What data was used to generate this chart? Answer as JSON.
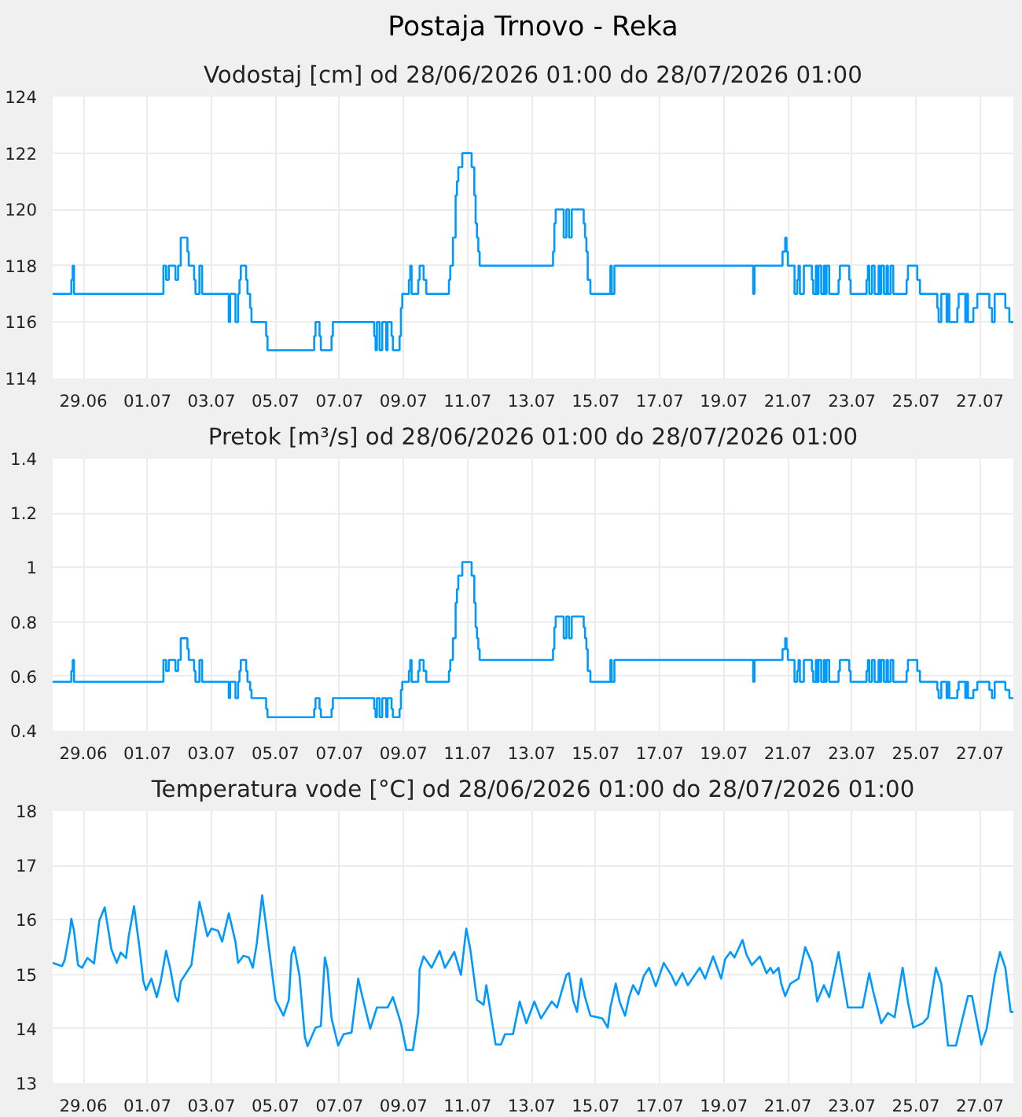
{
  "chart_data": [
    {
      "type": "step",
      "title": "Postaja Trnovo - Reka",
      "subtitle": "Vodostaj [cm] od 28/06/2026 01:00 do 28/07/2026 01:00",
      "x": [
        "2026-06-28T01:00",
        "2026-06-28T15:00",
        "2026-06-28T16:00",
        "2026-06-28T17:00",
        "2026-07-01T12:00",
        "2026-07-01T14:00",
        "2026-07-01T16:00",
        "2026-07-01T21:00",
        "2026-07-01T23:00",
        "2026-07-02T01:00",
        "2026-07-02T06:00",
        "2026-07-02T07:00",
        "2026-07-02T11:00",
        "2026-07-02T12:00",
        "2026-07-02T15:00",
        "2026-07-02T17:00",
        "2026-07-03T13:00",
        "2026-07-03T14:00",
        "2026-07-03T18:00",
        "2026-07-03T20:00",
        "2026-07-03T21:00",
        "2026-07-03T22:00",
        "2026-07-04T02:00",
        "2026-07-04T03:00",
        "2026-07-04T05:00",
        "2026-07-04T06:00",
        "2026-07-04T17:00",
        "2026-07-04T18:00",
        "2026-07-06T05:00",
        "2026-07-06T06:00",
        "2026-07-06T09:00",
        "2026-07-06T10:00",
        "2026-07-06T18:00",
        "2026-07-06T19:00",
        "2026-07-08T02:00",
        "2026-07-08T03:00",
        "2026-07-08T04:00",
        "2026-07-08T06:00",
        "2026-07-08T08:00",
        "2026-07-08T11:00",
        "2026-07-08T12:00",
        "2026-07-08T15:00",
        "2026-07-08T16:00",
        "2026-07-08T21:00",
        "2026-07-08T22:00",
        "2026-07-08T23:00",
        "2026-07-09T04:00",
        "2026-07-09T05:00",
        "2026-07-09T06:00",
        "2026-07-09T11:00",
        "2026-07-09T12:00",
        "2026-07-09T15:00",
        "2026-07-09T17:00",
        "2026-07-10T10:00",
        "2026-07-10T11:00",
        "2026-07-10T13:00",
        "2026-07-10T15:00",
        "2026-07-10T16:00",
        "2026-07-10T17:00",
        "2026-07-10T20:00",
        "2026-07-11T03:00",
        "2026-07-11T05:00",
        "2026-07-11T06:00",
        "2026-07-11T07:00",
        "2026-07-11T08:00",
        "2026-07-11T09:00",
        "2026-07-13T16:00",
        "2026-07-13T17:00",
        "2026-07-13T18:00",
        "2026-07-14T00:00",
        "2026-07-14T02:00",
        "2026-07-14T04:00",
        "2026-07-14T06:00",
        "2026-07-14T15:00",
        "2026-07-14T16:00",
        "2026-07-14T17:00",
        "2026-07-14T18:00",
        "2026-07-14T20:00",
        "2026-07-15T11:00",
        "2026-07-15T12:00",
        "2026-07-15T14:00",
        "2026-07-19T22:00",
        "2026-07-19T23:00",
        "2026-07-20T20:00",
        "2026-07-20T22:00",
        "2026-07-20T23:00",
        "2026-07-21T00:00",
        "2026-07-21T05:00",
        "2026-07-21T07:00",
        "2026-07-21T08:00",
        "2026-07-21T09:00",
        "2026-07-21T12:00",
        "2026-07-21T18:00",
        "2026-07-21T19:00",
        "2026-07-21T21:00",
        "2026-07-21T22:00",
        "2026-07-21T23:00",
        "2026-07-22T01:00",
        "2026-07-22T03:00",
        "2026-07-22T04:00",
        "2026-07-22T05:00",
        "2026-07-22T07:00",
        "2026-07-22T14:00",
        "2026-07-22T15:00",
        "2026-07-22T22:00",
        "2026-07-22T23:00",
        "2026-07-23T11:00",
        "2026-07-23T12:00",
        "2026-07-23T13:00",
        "2026-07-23T15:00",
        "2026-07-23T17:00",
        "2026-07-23T20:00",
        "2026-07-23T21:00",
        "2026-07-23T22:00",
        "2026-07-24T00:00",
        "2026-07-24T02:00",
        "2026-07-24T03:00",
        "2026-07-24T05:00",
        "2026-07-24T07:00",
        "2026-07-24T17:00",
        "2026-07-24T18:00",
        "2026-07-25T01:00",
        "2026-07-25T03:00",
        "2026-07-25T16:00",
        "2026-07-25T17:00",
        "2026-07-25T19:00",
        "2026-07-25T23:00",
        "2026-07-26T00:00",
        "2026-07-26T01:00",
        "2026-07-26T07:00",
        "2026-07-26T08:00",
        "2026-07-26T13:00",
        "2026-07-26T14:00",
        "2026-07-26T15:00",
        "2026-07-26T19:00",
        "2026-07-26T22:00",
        "2026-07-27T07:00",
        "2026-07-27T09:00",
        "2026-07-27T11:00",
        "2026-07-27T19:00",
        "2026-07-27T22:00",
        "2026-07-28T01:00"
      ],
      "series": [
        {
          "color": "#0099ff",
          "values": [
            117,
            117.5,
            118,
            117,
            118,
            117.5,
            118,
            117.5,
            118,
            119,
            118.5,
            118,
            117.5,
            117,
            118,
            117,
            116,
            117,
            116,
            117,
            117.5,
            118,
            117.5,
            117,
            116.5,
            116,
            115.5,
            115,
            115.5,
            116,
            115.5,
            115,
            115.5,
            116,
            115.5,
            115,
            116,
            115,
            116,
            115,
            116,
            115.5,
            115,
            115.5,
            116.5,
            117,
            117.5,
            118,
            117,
            117.5,
            118,
            117.5,
            117,
            117.5,
            118,
            119,
            120.5,
            121,
            121.5,
            122,
            121.5,
            120.5,
            119.5,
            119,
            118.5,
            118,
            118.5,
            119.5,
            120,
            119,
            120,
            119,
            120,
            119.5,
            119,
            118.5,
            117.5,
            117,
            118,
            117,
            118,
            117,
            118,
            118.5,
            119,
            118.5,
            118,
            117,
            117.5,
            118,
            117,
            118,
            117.5,
            117,
            118,
            117,
            118,
            117,
            118,
            117,
            118,
            117,
            117.5,
            118,
            117.5,
            117,
            117.5,
            118,
            117,
            118,
            117,
            118,
            117,
            118,
            117,
            118,
            117,
            118,
            117,
            117.5,
            118,
            117.5,
            117,
            116.5,
            116,
            117,
            116,
            117,
            116,
            116.5,
            117,
            116,
            117,
            116,
            116.5,
            117,
            116.5,
            116,
            117,
            116.5,
            116,
            116
          ]
        }
      ],
      "xlim": [
        "2026-06-28T01:00",
        "2026-07-28T01:00"
      ],
      "xticks": [
        {
          "value": "2026-06-29",
          "label": "29.06"
        },
        {
          "value": "2026-07-01",
          "label": "01.07"
        },
        {
          "value": "2026-07-03",
          "label": "03.07"
        },
        {
          "value": "2026-07-05",
          "label": "05.07"
        },
        {
          "value": "2026-07-07",
          "label": "07.07"
        },
        {
          "value": "2026-07-09",
          "label": "09.07"
        },
        {
          "value": "2026-07-11",
          "label": "11.07"
        },
        {
          "value": "2026-07-13",
          "label": "13.07"
        },
        {
          "value": "2026-07-15",
          "label": "15.07"
        },
        {
          "value": "2026-07-17",
          "label": "17.07"
        },
        {
          "value": "2026-07-19",
          "label": "19.07"
        },
        {
          "value": "2026-07-21",
          "label": "21.07"
        },
        {
          "value": "2026-07-23",
          "label": "23.07"
        },
        {
          "value": "2026-07-25",
          "label": "25.07"
        },
        {
          "value": "2026-07-27",
          "label": "27.07"
        }
      ],
      "ylim": [
        114,
        124
      ],
      "yticks": [
        114,
        116,
        118,
        120,
        122,
        124
      ],
      "grid": true
    },
    {
      "type": "step",
      "title": "Pretok [m³/s] od 28/06/2026 01:00 do 28/07/2026 01:00",
      "x": [
        "2026-06-28T01:00",
        "2026-06-28T15:00",
        "2026-06-28T16:00",
        "2026-06-28T17:00",
        "2026-07-01T12:00",
        "2026-07-01T14:00",
        "2026-07-01T16:00",
        "2026-07-01T21:00",
        "2026-07-01T23:00",
        "2026-07-02T01:00",
        "2026-07-02T06:00",
        "2026-07-02T07:00",
        "2026-07-02T11:00",
        "2026-07-02T12:00",
        "2026-07-02T15:00",
        "2026-07-02T17:00",
        "2026-07-03T13:00",
        "2026-07-03T14:00",
        "2026-07-03T18:00",
        "2026-07-03T20:00",
        "2026-07-03T21:00",
        "2026-07-03T22:00",
        "2026-07-04T02:00",
        "2026-07-04T03:00",
        "2026-07-04T05:00",
        "2026-07-04T06:00",
        "2026-07-04T17:00",
        "2026-07-04T18:00",
        "2026-07-06T05:00",
        "2026-07-06T06:00",
        "2026-07-06T09:00",
        "2026-07-06T10:00",
        "2026-07-06T18:00",
        "2026-07-06T19:00",
        "2026-07-08T02:00",
        "2026-07-08T03:00",
        "2026-07-08T04:00",
        "2026-07-08T06:00",
        "2026-07-08T08:00",
        "2026-07-08T11:00",
        "2026-07-08T12:00",
        "2026-07-08T15:00",
        "2026-07-08T16:00",
        "2026-07-08T21:00",
        "2026-07-08T22:00",
        "2026-07-08T23:00",
        "2026-07-09T04:00",
        "2026-07-09T05:00",
        "2026-07-09T06:00",
        "2026-07-09T11:00",
        "2026-07-09T12:00",
        "2026-07-09T15:00",
        "2026-07-09T17:00",
        "2026-07-10T10:00",
        "2026-07-10T11:00",
        "2026-07-10T13:00",
        "2026-07-10T15:00",
        "2026-07-10T16:00",
        "2026-07-10T17:00",
        "2026-07-10T20:00",
        "2026-07-11T03:00",
        "2026-07-11T05:00",
        "2026-07-11T06:00",
        "2026-07-11T07:00",
        "2026-07-11T08:00",
        "2026-07-11T09:00",
        "2026-07-13T16:00",
        "2026-07-13T17:00",
        "2026-07-13T18:00",
        "2026-07-14T00:00",
        "2026-07-14T02:00",
        "2026-07-14T04:00",
        "2026-07-14T06:00",
        "2026-07-14T15:00",
        "2026-07-14T16:00",
        "2026-07-14T17:00",
        "2026-07-14T18:00",
        "2026-07-14T20:00",
        "2026-07-15T11:00",
        "2026-07-15T12:00",
        "2026-07-15T14:00",
        "2026-07-19T22:00",
        "2026-07-19T23:00",
        "2026-07-20T20:00",
        "2026-07-20T22:00",
        "2026-07-20T23:00",
        "2026-07-21T00:00",
        "2026-07-21T05:00",
        "2026-07-21T07:00",
        "2026-07-21T08:00",
        "2026-07-21T09:00",
        "2026-07-21T12:00",
        "2026-07-21T18:00",
        "2026-07-21T19:00",
        "2026-07-21T21:00",
        "2026-07-21T22:00",
        "2026-07-21T23:00",
        "2026-07-22T01:00",
        "2026-07-22T03:00",
        "2026-07-22T04:00",
        "2026-07-22T05:00",
        "2026-07-22T07:00",
        "2026-07-22T14:00",
        "2026-07-22T15:00",
        "2026-07-22T22:00",
        "2026-07-22T23:00",
        "2026-07-23T11:00",
        "2026-07-23T12:00",
        "2026-07-23T13:00",
        "2026-07-23T15:00",
        "2026-07-23T17:00",
        "2026-07-23T20:00",
        "2026-07-23T21:00",
        "2026-07-23T22:00",
        "2026-07-24T00:00",
        "2026-07-24T02:00",
        "2026-07-24T03:00",
        "2026-07-24T05:00",
        "2026-07-24T07:00",
        "2026-07-24T17:00",
        "2026-07-24T18:00",
        "2026-07-25T01:00",
        "2026-07-25T03:00",
        "2026-07-25T16:00",
        "2026-07-25T17:00",
        "2026-07-25T19:00",
        "2026-07-25T23:00",
        "2026-07-26T00:00",
        "2026-07-26T01:00",
        "2026-07-26T07:00",
        "2026-07-26T08:00",
        "2026-07-26T13:00",
        "2026-07-26T14:00",
        "2026-07-26T15:00",
        "2026-07-26T19:00",
        "2026-07-26T22:00",
        "2026-07-27T07:00",
        "2026-07-27T09:00",
        "2026-07-27T11:00",
        "2026-07-27T19:00",
        "2026-07-27T22:00",
        "2026-07-28T01:00"
      ],
      "series": [
        {
          "color": "#0099ff",
          "values": [
            0.58,
            0.62,
            0.66,
            0.58,
            0.66,
            0.62,
            0.66,
            0.62,
            0.66,
            0.74,
            0.7,
            0.66,
            0.62,
            0.58,
            0.66,
            0.58,
            0.52,
            0.58,
            0.52,
            0.58,
            0.62,
            0.66,
            0.62,
            0.58,
            0.55,
            0.52,
            0.48,
            0.45,
            0.48,
            0.52,
            0.48,
            0.45,
            0.48,
            0.52,
            0.48,
            0.45,
            0.52,
            0.45,
            0.52,
            0.45,
            0.52,
            0.48,
            0.45,
            0.48,
            0.55,
            0.58,
            0.62,
            0.66,
            0.58,
            0.62,
            0.66,
            0.62,
            0.58,
            0.62,
            0.66,
            0.74,
            0.87,
            0.92,
            0.97,
            1.02,
            0.97,
            0.87,
            0.78,
            0.74,
            0.7,
            0.66,
            0.7,
            0.78,
            0.82,
            0.74,
            0.82,
            0.74,
            0.82,
            0.78,
            0.74,
            0.7,
            0.62,
            0.58,
            0.66,
            0.58,
            0.66,
            0.58,
            0.66,
            0.7,
            0.74,
            0.7,
            0.66,
            0.58,
            0.62,
            0.66,
            0.58,
            0.66,
            0.62,
            0.58,
            0.66,
            0.58,
            0.66,
            0.58,
            0.66,
            0.58,
            0.66,
            0.58,
            0.62,
            0.66,
            0.62,
            0.58,
            0.62,
            0.66,
            0.58,
            0.66,
            0.58,
            0.66,
            0.58,
            0.66,
            0.58,
            0.66,
            0.58,
            0.66,
            0.58,
            0.62,
            0.66,
            0.62,
            0.58,
            0.55,
            0.52,
            0.58,
            0.52,
            0.58,
            0.52,
            0.55,
            0.58,
            0.52,
            0.58,
            0.52,
            0.55,
            0.58,
            0.55,
            0.52,
            0.58,
            0.55,
            0.52,
            0.52
          ]
        }
      ],
      "xlim": [
        "2026-06-28T01:00",
        "2026-07-28T01:00"
      ],
      "xticks": [
        {
          "value": "2026-06-29",
          "label": "29.06"
        },
        {
          "value": "2026-07-01",
          "label": "01.07"
        },
        {
          "value": "2026-07-03",
          "label": "03.07"
        },
        {
          "value": "2026-07-05",
          "label": "05.07"
        },
        {
          "value": "2026-07-07",
          "label": "07.07"
        },
        {
          "value": "2026-07-09",
          "label": "09.07"
        },
        {
          "value": "2026-07-11",
          "label": "11.07"
        },
        {
          "value": "2026-07-13",
          "label": "13.07"
        },
        {
          "value": "2026-07-15",
          "label": "15.07"
        },
        {
          "value": "2026-07-17",
          "label": "17.07"
        },
        {
          "value": "2026-07-19",
          "label": "19.07"
        },
        {
          "value": "2026-07-21",
          "label": "21.07"
        },
        {
          "value": "2026-07-23",
          "label": "23.07"
        },
        {
          "value": "2026-07-25",
          "label": "25.07"
        },
        {
          "value": "2026-07-27",
          "label": "27.07"
        }
      ],
      "ylim": [
        0.4,
        1.4
      ],
      "yticks": [
        0.4,
        0.6,
        0.8,
        1,
        1.2,
        1.4
      ],
      "grid": true
    },
    {
      "type": "line",
      "title": "Temperatura vode [°C] od 28/06/2026 01:00 do 28/07/2026 01:00",
      "x": [
        "2026-06-28T01:00",
        "2026-06-28T08:00",
        "2026-06-28T10:00",
        "2026-06-28T14:00",
        "2026-06-28T15:00",
        "2026-06-28T17:00",
        "2026-06-28T20:00",
        "2026-06-28T23:00",
        "2026-06-29T03:00",
        "2026-06-29T08:00",
        "2026-06-29T12:00",
        "2026-06-29T16:00",
        "2026-06-29T21:00",
        "2026-06-30T01:00",
        "2026-06-30T04:00",
        "2026-06-30T08:00",
        "2026-06-30T10:00",
        "2026-06-30T14:00",
        "2026-06-30T18:00",
        "2026-06-30T21:00",
        "2026-06-30T23:00",
        "2026-07-01T03:00",
        "2026-07-01T07:00",
        "2026-07-01T10:00",
        "2026-07-01T14:00",
        "2026-07-01T17:00",
        "2026-07-01T21:00",
        "2026-07-01T23:00",
        "2026-07-02T01:00",
        "2026-07-02T09:00",
        "2026-07-02T12:00",
        "2026-07-02T15:00",
        "2026-07-02T21:00",
        "2026-07-03T00:00",
        "2026-07-03T05:00",
        "2026-07-03T08:00",
        "2026-07-03T13:00",
        "2026-07-03T18:00",
        "2026-07-03T20:00",
        "2026-07-04T00:00",
        "2026-07-04T04:00",
        "2026-07-04T07:00",
        "2026-07-04T10:00",
        "2026-07-04T14:00",
        "2026-07-04T18:00",
        "2026-07-05T00:00",
        "2026-07-05T06:00",
        "2026-07-05T10:00",
        "2026-07-05T12:00",
        "2026-07-05T14:00",
        "2026-07-05T18:00",
        "2026-07-05T22:00",
        "2026-07-06T00:00",
        "2026-07-06T06:00",
        "2026-07-06T10:00",
        "2026-07-06T13:00",
        "2026-07-06T15:00",
        "2026-07-06T18:00",
        "2026-07-06T23:00",
        "2026-07-07T03:00",
        "2026-07-07T09:00",
        "2026-07-07T14:00",
        "2026-07-07T17:00",
        "2026-07-07T23:00",
        "2026-07-08T04:00",
        "2026-07-08T12:00",
        "2026-07-08T16:00",
        "2026-07-08T22:00",
        "2026-07-09T02:00",
        "2026-07-09T07:00",
        "2026-07-09T11:00",
        "2026-07-09T12:00",
        "2026-07-09T15:00",
        "2026-07-09T21:00",
        "2026-07-10T03:00",
        "2026-07-10T07:00",
        "2026-07-10T14:00",
        "2026-07-10T19:00",
        "2026-07-10T23:00",
        "2026-07-11T02:00",
        "2026-07-11T07:00",
        "2026-07-11T12:00",
        "2026-07-11T14:00",
        "2026-07-11T21:00",
        "2026-07-12T01:00",
        "2026-07-12T04:00",
        "2026-07-12T10:00",
        "2026-07-12T15:00",
        "2026-07-12T20:00",
        "2026-07-13T02:00",
        "2026-07-13T07:00",
        "2026-07-13T15:00",
        "2026-07-13T19:00",
        "2026-07-14T02:00",
        "2026-07-14T04:00",
        "2026-07-14T07:00",
        "2026-07-14T10:00",
        "2026-07-14T13:00",
        "2026-07-14T16:00",
        "2026-07-14T20:00",
        "2026-07-15T05:00",
        "2026-07-15T09:00",
        "2026-07-15T11:00",
        "2026-07-15T15:00",
        "2026-07-15T18:00",
        "2026-07-15T22:00",
        "2026-07-16T01:00",
        "2026-07-16T04:00",
        "2026-07-16T08:00",
        "2026-07-16T12:00",
        "2026-07-16T16:00",
        "2026-07-16T21:00",
        "2026-07-17T03:00",
        "2026-07-17T09:00",
        "2026-07-17T12:00",
        "2026-07-17T17:00",
        "2026-07-17T21:00",
        "2026-07-18T06:00",
        "2026-07-18T10:00",
        "2026-07-18T16:00",
        "2026-07-18T22:00",
        "2026-07-19T01:00",
        "2026-07-19T05:00",
        "2026-07-19T08:00",
        "2026-07-19T14:00",
        "2026-07-19T17:00",
        "2026-07-19T21:00",
        "2026-07-20T03:00",
        "2026-07-20T08:00",
        "2026-07-20T11:00",
        "2026-07-20T13:00",
        "2026-07-20T17:00",
        "2026-07-20T19:00",
        "2026-07-20T22:00",
        "2026-07-21T02:00",
        "2026-07-21T08:00",
        "2026-07-21T13:00",
        "2026-07-21T18:00",
        "2026-07-21T22:00",
        "2026-07-22T03:00",
        "2026-07-22T07:00",
        "2026-07-22T14:00",
        "2026-07-22T21:00",
        "2026-07-23T08:00",
        "2026-07-23T13:00",
        "2026-07-23T16:00",
        "2026-07-23T22:00",
        "2026-07-24T03:00",
        "2026-07-24T08:00",
        "2026-07-24T14:00",
        "2026-07-24T18:00",
        "2026-07-24T22:00",
        "2026-07-25T05:00",
        "2026-07-25T09:00",
        "2026-07-25T15:00",
        "2026-07-25T19:00",
        "2026-07-26T00:00",
        "2026-07-26T06:00",
        "2026-07-26T15:00",
        "2026-07-26T18:00",
        "2026-07-27T01:00",
        "2026-07-27T05:00",
        "2026-07-27T11:00",
        "2026-07-27T15:00",
        "2026-07-27T19:00",
        "2026-07-27T23:00",
        "2026-07-28T01:00"
      ],
      "series": [
        {
          "color": "#0099ff",
          "values": [
            15.21,
            15.15,
            15.26,
            15.8,
            16.02,
            15.8,
            15.17,
            15.12,
            15.3,
            15.2,
            15.99,
            16.23,
            15.46,
            15.21,
            15.4,
            15.3,
            15.7,
            16.25,
            15.5,
            14.87,
            14.71,
            14.92,
            14.58,
            14.87,
            15.43,
            15.12,
            14.58,
            14.5,
            14.87,
            15.17,
            15.75,
            16.33,
            15.7,
            15.84,
            15.8,
            15.6,
            16.12,
            15.6,
            15.21,
            15.34,
            15.31,
            15.12,
            15.57,
            16.45,
            15.7,
            14.53,
            14.24,
            14.53,
            15.36,
            15.5,
            14.97,
            13.85,
            13.68,
            14.02,
            14.05,
            15.31,
            15.09,
            14.19,
            13.69,
            13.9,
            13.93,
            14.92,
            14.6,
            14.0,
            14.39,
            14.39,
            14.58,
            14.1,
            13.61,
            13.61,
            14.29,
            15.09,
            15.33,
            15.12,
            15.43,
            15.12,
            15.41,
            14.99,
            15.84,
            15.46,
            14.53,
            14.44,
            14.8,
            13.71,
            13.71,
            13.9,
            13.9,
            14.5,
            14.1,
            14.5,
            14.19,
            14.5,
            14.39,
            14.99,
            15.02,
            14.53,
            14.31,
            14.92,
            14.58,
            14.24,
            14.19,
            14.02,
            14.39,
            14.83,
            14.49,
            14.24,
            14.58,
            14.8,
            14.63,
            14.97,
            15.12,
            14.78,
            15.21,
            14.97,
            14.8,
            15.02,
            14.8,
            15.12,
            14.92,
            15.33,
            14.92,
            15.28,
            15.41,
            15.31,
            15.63,
            15.36,
            15.17,
            15.33,
            15.02,
            15.12,
            15.02,
            15.12,
            14.83,
            14.6,
            14.83,
            14.92,
            15.5,
            15.21,
            14.5,
            14.8,
            14.58,
            15.41,
            14.39,
            14.39,
            15.02,
            14.68,
            14.1,
            14.29,
            14.21,
            15.12,
            14.49,
            14.02,
            14.1,
            14.21,
            15.12,
            14.83,
            13.69,
            13.69,
            14.6,
            14.6,
            13.71,
            14.0,
            14.97,
            15.41,
            15.12,
            14.31,
            14.31
          ]
        }
      ],
      "xlim": [
        "2026-06-28T01:00",
        "2026-07-28T01:00"
      ],
      "xticks": [
        {
          "value": "2026-06-29",
          "label": "29.06"
        },
        {
          "value": "2026-07-01",
          "label": "01.07"
        },
        {
          "value": "2026-07-03",
          "label": "03.07"
        },
        {
          "value": "2026-07-05",
          "label": "05.07"
        },
        {
          "value": "2026-07-07",
          "label": "07.07"
        },
        {
          "value": "2026-07-09",
          "label": "09.07"
        },
        {
          "value": "2026-07-11",
          "label": "11.07"
        },
        {
          "value": "2026-07-13",
          "label": "13.07"
        },
        {
          "value": "2026-07-15",
          "label": "15.07"
        },
        {
          "value": "2026-07-17",
          "label": "17.07"
        },
        {
          "value": "2026-07-19",
          "label": "19.07"
        },
        {
          "value": "2026-07-21",
          "label": "21.07"
        },
        {
          "value": "2026-07-23",
          "label": "23.07"
        },
        {
          "value": "2026-07-25",
          "label": "25.07"
        },
        {
          "value": "2026-07-27",
          "label": "27.07"
        }
      ],
      "ylim": [
        13,
        18
      ],
      "yticks": [
        13,
        14,
        15,
        16,
        17,
        18
      ],
      "grid": true
    }
  ]
}
